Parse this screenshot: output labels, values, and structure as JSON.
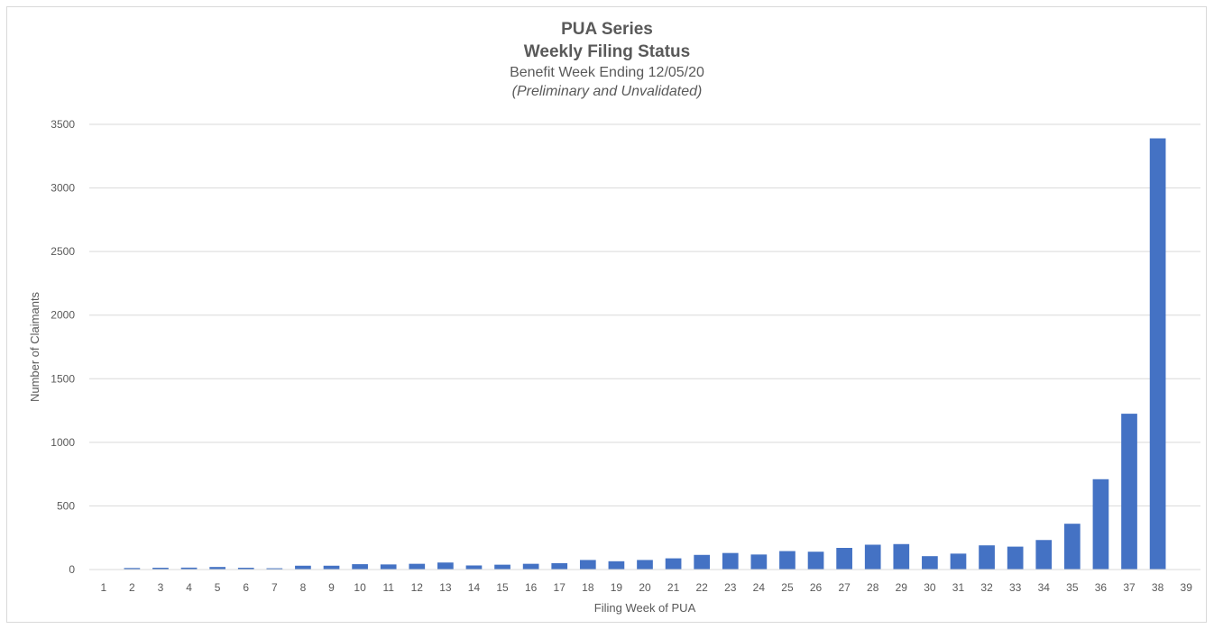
{
  "chart_data": {
    "type": "bar",
    "title": "PUA Series",
    "subtitle": "Weekly Filing Status",
    "subtitle2": "Benefit Week Ending 12/05/20",
    "subtitle3": "(Preliminary and Unvalidated)",
    "xlabel": "Filing Week of PUA",
    "ylabel": "Number of Claimants",
    "ylim": [
      0,
      3500
    ],
    "yticks": [
      "0",
      "500",
      "1000",
      "1500",
      "2000",
      "2500",
      "3000",
      "3500"
    ],
    "grid": true,
    "legend": "none",
    "bar_color": "#4472c4",
    "categories": [
      "1",
      "2",
      "3",
      "4",
      "5",
      "6",
      "7",
      "8",
      "9",
      "10",
      "11",
      "12",
      "13",
      "14",
      "15",
      "16",
      "17",
      "18",
      "19",
      "20",
      "21",
      "22",
      "23",
      "24",
      "25",
      "26",
      "27",
      "28",
      "29",
      "30",
      "31",
      "32",
      "33",
      "34",
      "35",
      "36",
      "37",
      "38",
      "39"
    ],
    "values": [
      0,
      12,
      14,
      15,
      20,
      14,
      10,
      30,
      30,
      42,
      40,
      45,
      55,
      32,
      38,
      45,
      50,
      75,
      65,
      75,
      88,
      115,
      130,
      118,
      145,
      140,
      170,
      195,
      200,
      105,
      125,
      190,
      180,
      232,
      360,
      710,
      1225,
      3390,
      0
    ]
  }
}
